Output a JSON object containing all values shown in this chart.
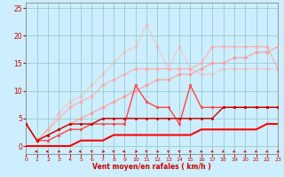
{
  "xlabel": "Vent moyen/en rafales ( km/h )",
  "bg_color": "#cceeff",
  "grid_color": "#99cccc",
  "x_ticks": [
    0,
    1,
    2,
    3,
    4,
    5,
    6,
    7,
    8,
    9,
    10,
    11,
    12,
    13,
    14,
    15,
    16,
    17,
    18,
    19,
    20,
    21,
    22,
    23
  ],
  "xlim": [
    0,
    23
  ],
  "ylim": [
    -1.5,
    26
  ],
  "y_ticks": [
    0,
    5,
    10,
    15,
    20,
    25
  ],
  "lines": [
    {
      "x": [
        0,
        1,
        2,
        3,
        4,
        5,
        6,
        7,
        8,
        9,
        10,
        11,
        12,
        13,
        14,
        15,
        16,
        17,
        18,
        19,
        20,
        21,
        22,
        23
      ],
      "y": [
        4,
        1,
        3,
        6,
        8,
        9,
        11,
        13,
        15,
        17,
        18,
        22,
        18,
        14,
        18,
        14,
        13,
        13,
        14,
        14,
        14,
        14,
        14,
        14
      ],
      "color": "#ffbbbb",
      "lw": 0.9,
      "marker": "D",
      "ms": 2,
      "alpha": 0.75,
      "zorder": 1
    },
    {
      "x": [
        0,
        1,
        2,
        3,
        4,
        5,
        6,
        7,
        8,
        9,
        10,
        11,
        12,
        13,
        14,
        15,
        16,
        17,
        18,
        19,
        20,
        21,
        22,
        23
      ],
      "y": [
        4,
        1,
        3,
        5,
        7,
        8,
        9,
        11,
        12,
        13,
        14,
        14,
        14,
        14,
        14,
        14,
        15,
        18,
        18,
        18,
        18,
        18,
        18,
        14
      ],
      "color": "#ffaaaa",
      "lw": 0.9,
      "marker": "D",
      "ms": 2,
      "alpha": 0.85,
      "zorder": 2
    },
    {
      "x": [
        0,
        1,
        2,
        3,
        4,
        5,
        6,
        7,
        8,
        9,
        10,
        11,
        12,
        13,
        14,
        15,
        16,
        17,
        18,
        19,
        20,
        21,
        22,
        23
      ],
      "y": [
        4,
        1,
        2,
        3,
        4,
        5,
        6,
        7,
        8,
        9,
        10,
        11,
        12,
        12,
        13,
        13,
        14,
        15,
        15,
        16,
        16,
        17,
        17,
        18
      ],
      "color": "#ff9999",
      "lw": 0.9,
      "marker": "D",
      "ms": 2,
      "alpha": 0.85,
      "zorder": 3
    },
    {
      "x": [
        0,
        1,
        2,
        3,
        4,
        5,
        6,
        7,
        8,
        9,
        10,
        11,
        12,
        13,
        14,
        15,
        16,
        17,
        18,
        19,
        20,
        21,
        22,
        23
      ],
      "y": [
        4,
        1,
        1,
        2,
        3,
        3,
        4,
        4,
        4,
        4,
        11,
        8,
        7,
        7,
        4,
        11,
        7,
        7,
        7,
        7,
        7,
        7,
        7,
        7
      ],
      "color": "#ff4444",
      "lw": 1.0,
      "marker": "s",
      "ms": 2,
      "alpha": 1.0,
      "zorder": 4
    },
    {
      "x": [
        0,
        1,
        2,
        3,
        4,
        5,
        6,
        7,
        8,
        9,
        10,
        11,
        12,
        13,
        14,
        15,
        16,
        17,
        18,
        19,
        20,
        21,
        22,
        23
      ],
      "y": [
        4,
        1,
        2,
        3,
        4,
        4,
        4,
        5,
        5,
        5,
        5,
        5,
        5,
        5,
        5,
        5,
        5,
        5,
        7,
        7,
        7,
        7,
        7,
        7
      ],
      "color": "#cc0000",
      "lw": 1.0,
      "marker": "s",
      "ms": 2,
      "alpha": 1.0,
      "zorder": 5
    },
    {
      "x": [
        0,
        1,
        2,
        3,
        4,
        5,
        6,
        7,
        8,
        9,
        10,
        11,
        12,
        13,
        14,
        15,
        16,
        17,
        18,
        19,
        20,
        21,
        22,
        23
      ],
      "y": [
        0,
        0,
        0,
        0,
        0,
        1,
        1,
        1,
        2,
        2,
        2,
        2,
        2,
        2,
        2,
        2,
        3,
        3,
        3,
        3,
        3,
        3,
        4,
        4
      ],
      "color": "#ff0000",
      "lw": 1.5,
      "marker": null,
      "ms": 0,
      "alpha": 1.0,
      "zorder": 6
    }
  ],
  "wind_arrows": {
    "y": -1.0,
    "color": "#cc0000",
    "angles": [
      225,
      270,
      270,
      315,
      90,
      270,
      225,
      90,
      225,
      270,
      90,
      225,
      45,
      225,
      225,
      225,
      315,
      315,
      315,
      315,
      315,
      315,
      315,
      315
    ]
  }
}
